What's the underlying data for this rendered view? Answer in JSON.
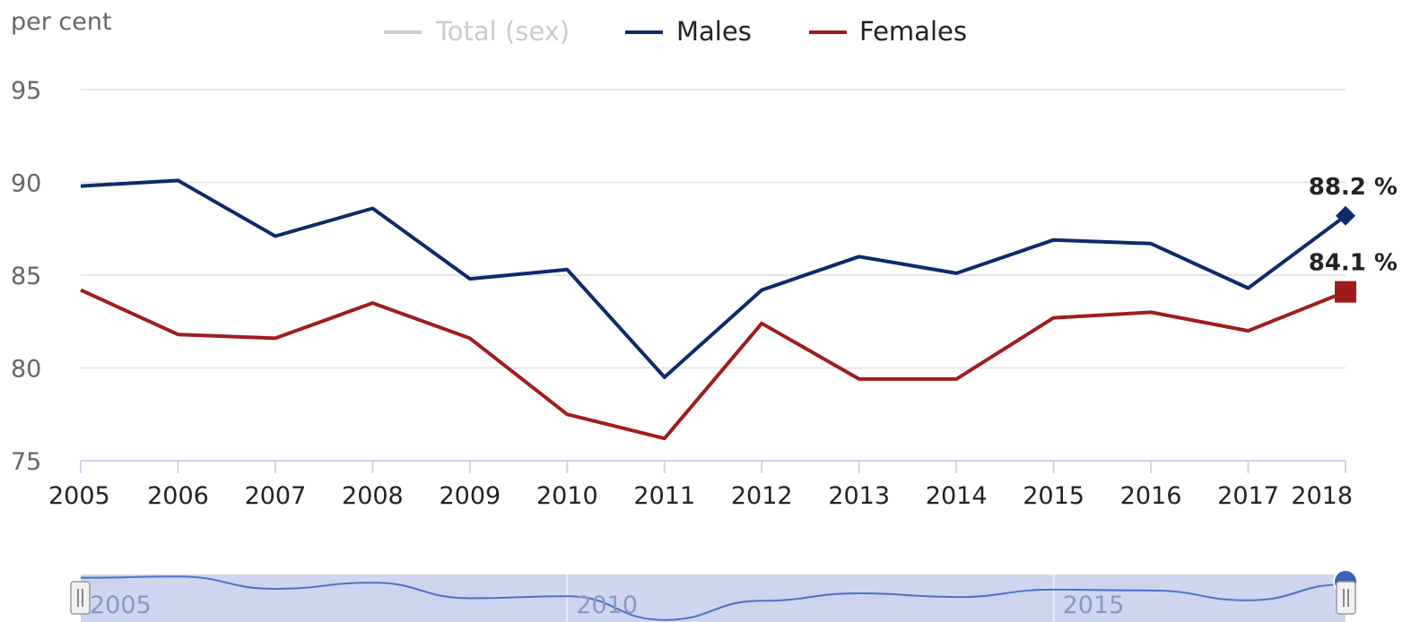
{
  "chart_data": {
    "type": "line",
    "unit_label": "per cent",
    "categories": [
      "2005",
      "2006",
      "2007",
      "2008",
      "2009",
      "2010",
      "2011",
      "2012",
      "2013",
      "2014",
      "2015",
      "2016",
      "2017",
      "2018"
    ],
    "yticks": [
      "95",
      "90",
      "85",
      "80",
      "75"
    ],
    "ylim": [
      75,
      95
    ],
    "grid": true,
    "legend_position": "top",
    "legend": [
      {
        "label": "Total (sex)",
        "color": "#cccccc",
        "hidden": true
      },
      {
        "label": "Males",
        "color": "#0d2b6b"
      },
      {
        "label": "Females",
        "color": "#a01c1c"
      }
    ],
    "series": [
      {
        "name": "Males",
        "color": "#0d2b6b",
        "values": [
          89.8,
          90.1,
          87.1,
          88.6,
          84.8,
          85.3,
          79.5,
          84.2,
          86.0,
          85.1,
          86.9,
          86.7,
          84.3,
          88.2
        ]
      },
      {
        "name": "Females",
        "color": "#a01c1c",
        "values": [
          84.2,
          81.8,
          81.6,
          83.5,
          81.6,
          77.5,
          76.2,
          82.4,
          79.4,
          79.4,
          82.7,
          83.0,
          82.0,
          84.1
        ]
      }
    ],
    "data_labels": [
      "88.2 %",
      "84.1 %"
    ],
    "navigator": {
      "ticks": [
        "2005",
        "2010",
        "2015"
      ],
      "fill_color": "#cdd6ee",
      "line_color": "#4a72c8"
    }
  }
}
